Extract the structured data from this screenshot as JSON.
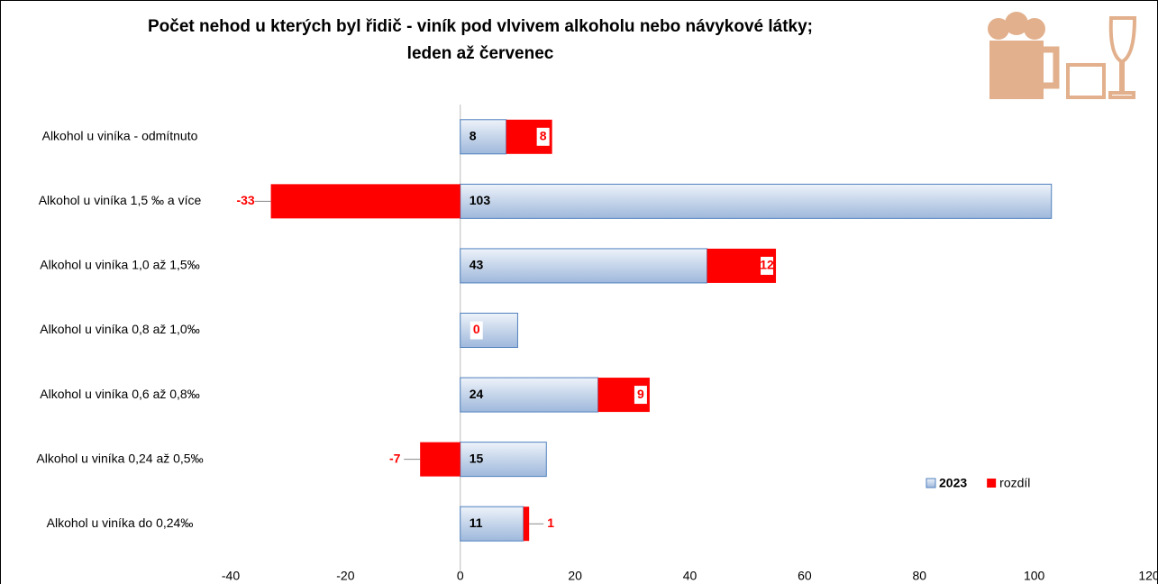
{
  "chart_data": {
    "type": "bar",
    "orientation": "horizontal",
    "stacked": true,
    "title": [
      "Počet nehod u kterých byl řidič - viník pod vlvivem alkoholu nebo návykové látky;",
      "leden až červenec"
    ],
    "categories": [
      "Alkohol u viníka - odmítnuto",
      "Alkohol u viníka 1,5 ‰ a více",
      "Alkohol u viníka 1,0 až 1,5‰",
      "Alkohol u viníka  0,8 až 1,0‰",
      "Alkohol u viníka  0,6 až 0,8‰",
      "Alkohol u viníka  0,24 až 0,5‰",
      "Alkohol u viníka do 0,24‰"
    ],
    "series": [
      {
        "name": "2023",
        "color": "#c5d5ea",
        "values": [
          8,
          103,
          43,
          10,
          24,
          15,
          11
        ],
        "value_labels": [
          "8",
          "103",
          "43",
          null,
          "24",
          "15",
          "11"
        ]
      },
      {
        "name": "rozdíl",
        "color": "#ff0000",
        "values": [
          8,
          -33,
          12,
          0,
          9,
          -7,
          1
        ]
      }
    ],
    "xlim": [
      -40,
      120
    ],
    "xticks": [
      -40,
      -20,
      0,
      20,
      40,
      60,
      80,
      100,
      120
    ],
    "legend": "lower right"
  }
}
